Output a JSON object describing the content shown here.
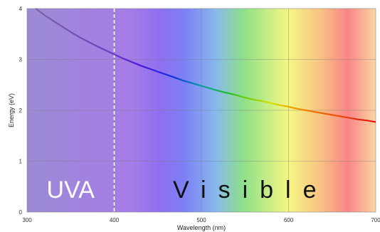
{
  "chart_data": {
    "type": "line",
    "title": "",
    "xlabel": "Wavelength (nm)",
    "ylabel": "Energy (eV)",
    "xlim": [
      300,
      700
    ],
    "ylim": [
      0,
      4
    ],
    "x_ticks": [
      "300",
      "400",
      "500",
      "600",
      "700"
    ],
    "y_ticks": [
      "0",
      "1",
      "2",
      "3",
      "4"
    ],
    "grid": true,
    "legend": "none",
    "series": [
      {
        "x": [
          300,
          310,
          320,
          330,
          340,
          350,
          360,
          370,
          380,
          390,
          400,
          410,
          420,
          430,
          440,
          450,
          460,
          470,
          480,
          490,
          500,
          510,
          520,
          530,
          540,
          550,
          560,
          570,
          580,
          590,
          600,
          610,
          620,
          630,
          640,
          650,
          660,
          670,
          680,
          690,
          700
        ],
        "y": [
          4.13,
          4.0,
          3.87,
          3.76,
          3.65,
          3.54,
          3.44,
          3.35,
          3.26,
          3.18,
          3.1,
          3.02,
          2.95,
          2.88,
          2.82,
          2.76,
          2.7,
          2.64,
          2.58,
          2.53,
          2.48,
          2.43,
          2.38,
          2.34,
          2.3,
          2.25,
          2.21,
          2.18,
          2.14,
          2.1,
          2.07,
          2.03,
          2.0,
          1.97,
          1.94,
          1.91,
          1.88,
          1.85,
          1.82,
          1.8,
          1.77
        ]
      }
    ],
    "annotations": [
      {
        "text": "UVA",
        "x": 350,
        "y": 0.45
      },
      {
        "text": "Visible",
        "x": 550,
        "y": 0.45
      }
    ],
    "boundary_line": {
      "x": 400,
      "style": "dashed",
      "color": "#ffffff"
    }
  },
  "colors": {
    "uv_left": "#9b8bd4",
    "uv_right": "#a67ce8",
    "violet": "#8f6ff0",
    "blue": "#7d7ff5",
    "cyan": "#88b8ee",
    "green": "#8ee08a",
    "yellow": "#f6f784",
    "orange": "#f7c383",
    "red": "#f98588",
    "red_end": "#f9d6a0"
  }
}
